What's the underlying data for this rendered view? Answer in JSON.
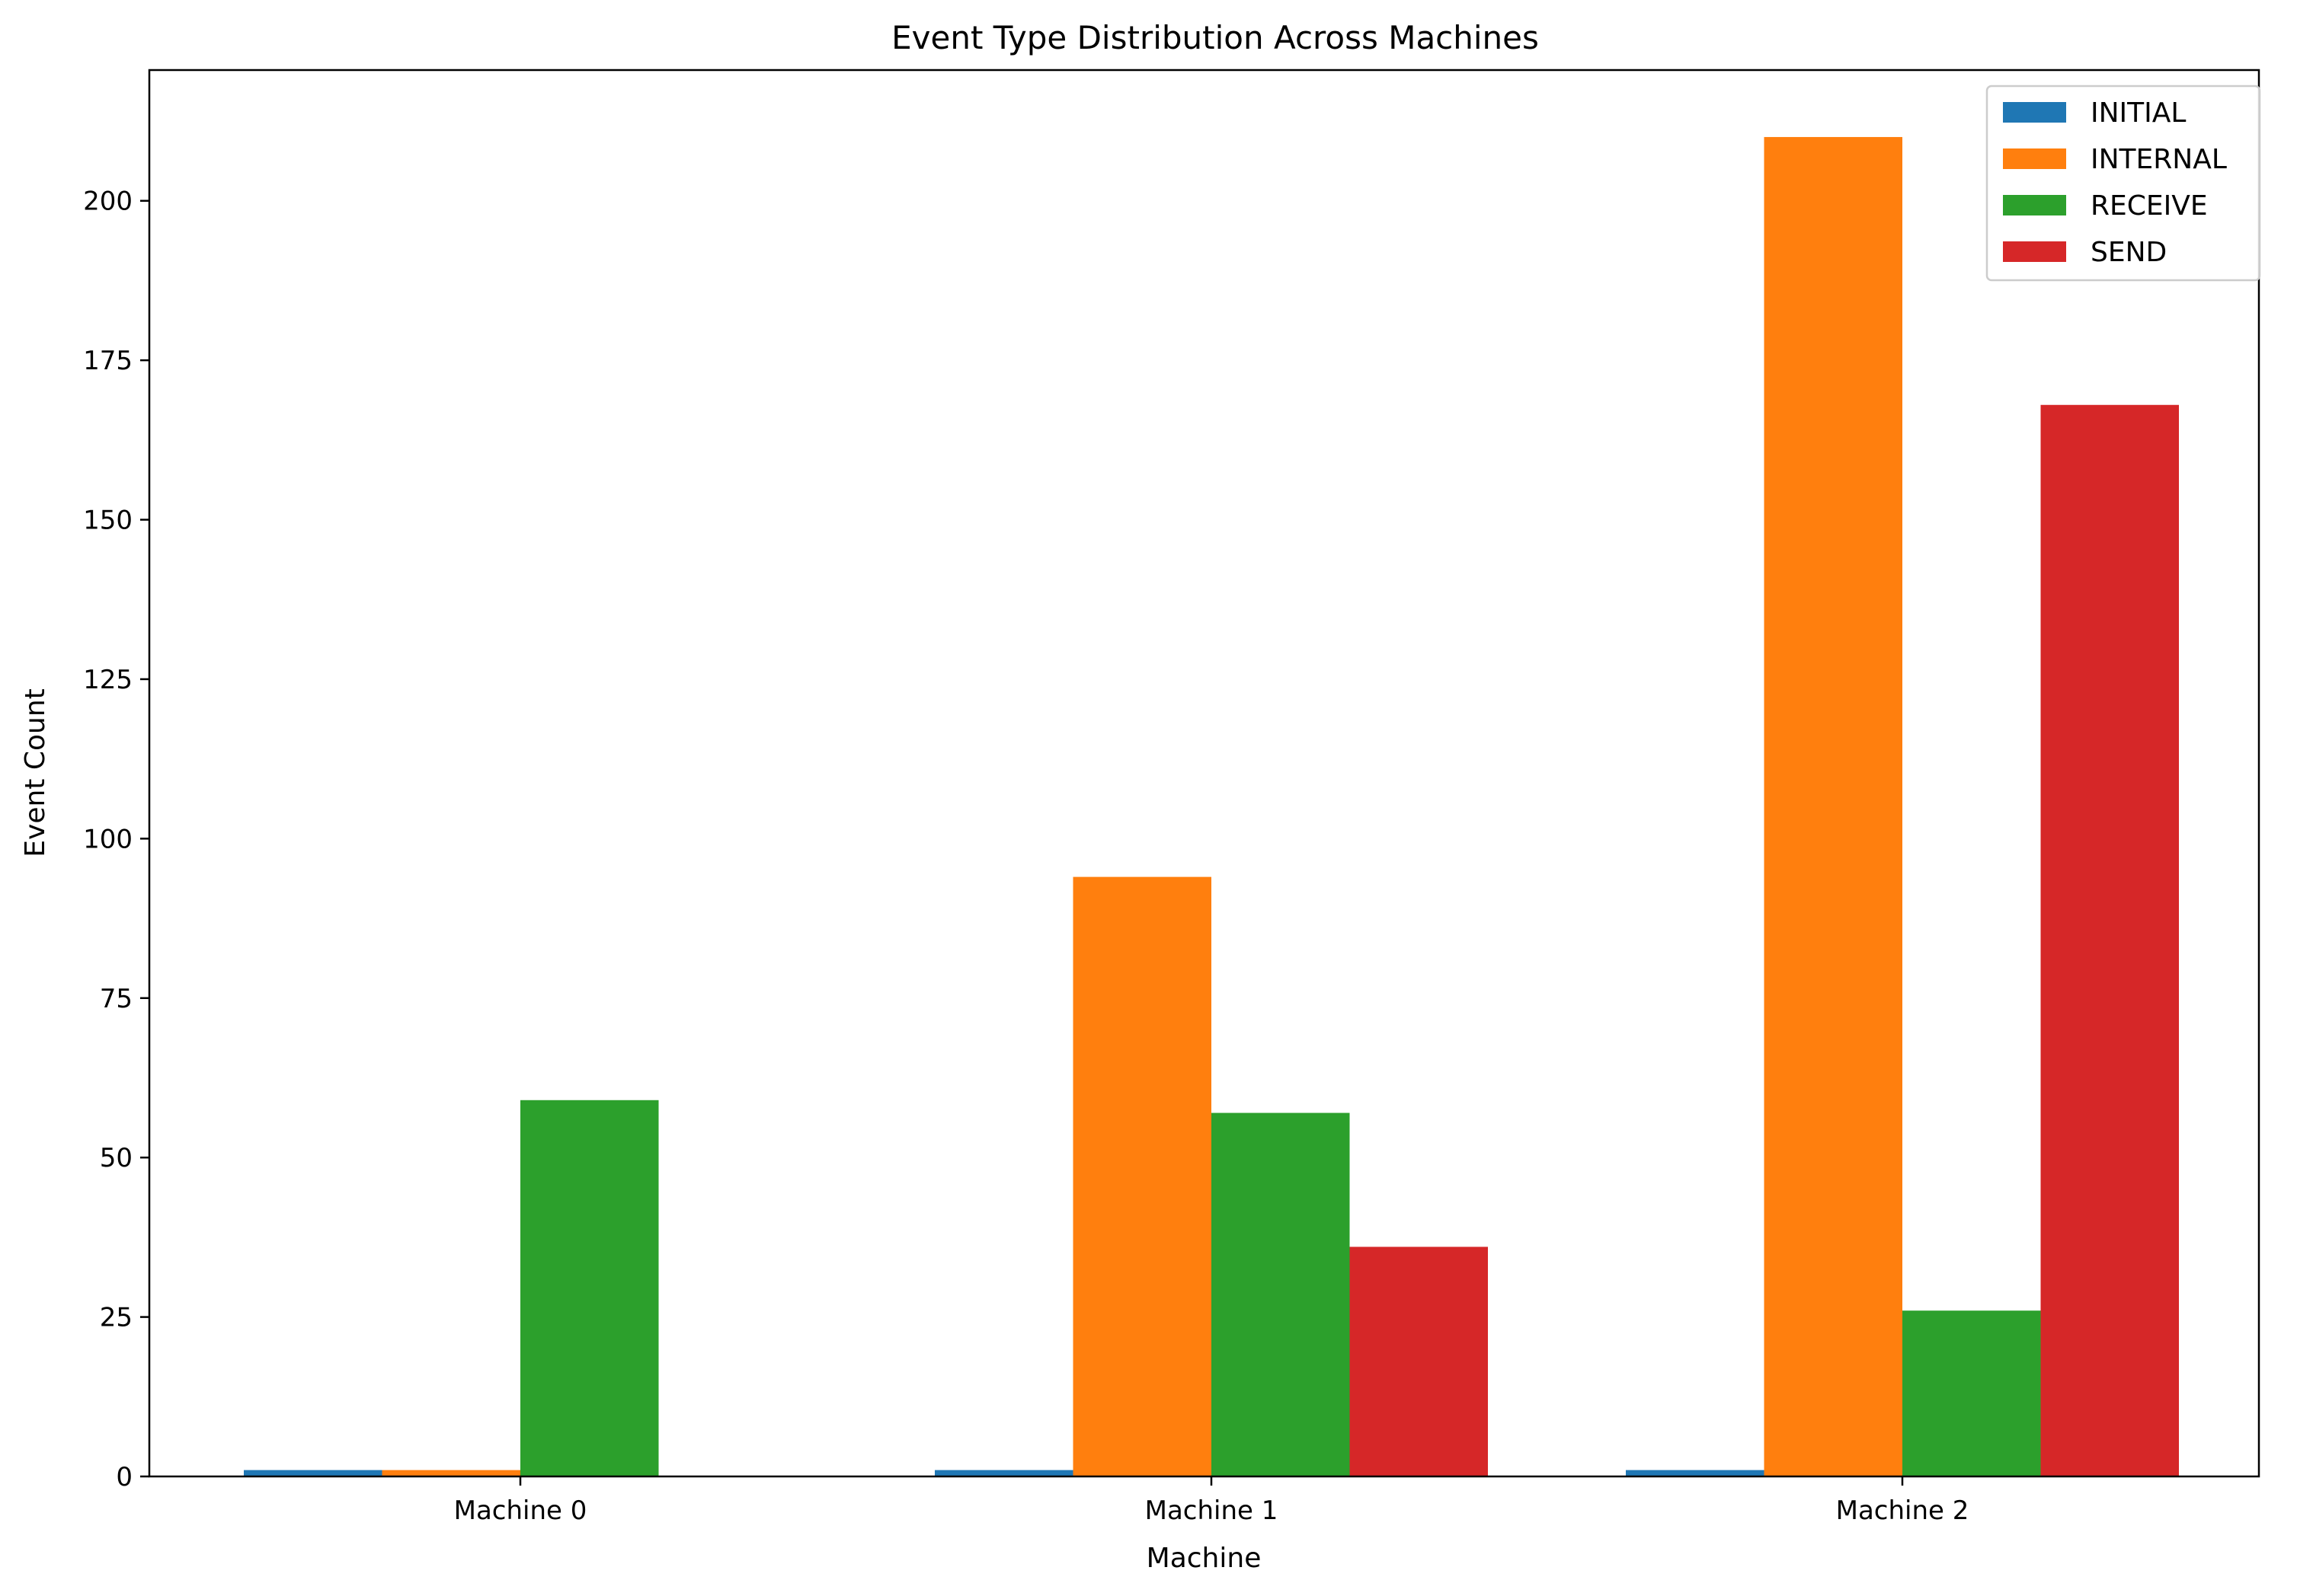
{
  "chart_data": {
    "type": "bar",
    "title": "Event Type Distribution Across Machines",
    "xlabel": "Machine",
    "ylabel": "Event Count",
    "categories": [
      "Machine 0",
      "Machine 1",
      "Machine 2"
    ],
    "series": [
      {
        "name": "INITIAL",
        "color": "#1f77b4",
        "values": [
          1,
          1,
          1
        ]
      },
      {
        "name": "INTERNAL",
        "color": "#ff7f0e",
        "values": [
          1,
          94,
          210
        ]
      },
      {
        "name": "RECEIVE",
        "color": "#2ca02c",
        "values": [
          59,
          57,
          26
        ]
      },
      {
        "name": "SEND",
        "color": "#d62728",
        "values": [
          0,
          36,
          168
        ]
      }
    ],
    "ylim": [
      0,
      220.5
    ],
    "yticks": [
      0,
      25,
      50,
      75,
      100,
      125,
      150,
      175,
      200
    ],
    "grid": false,
    "legend_position": "top-right"
  }
}
